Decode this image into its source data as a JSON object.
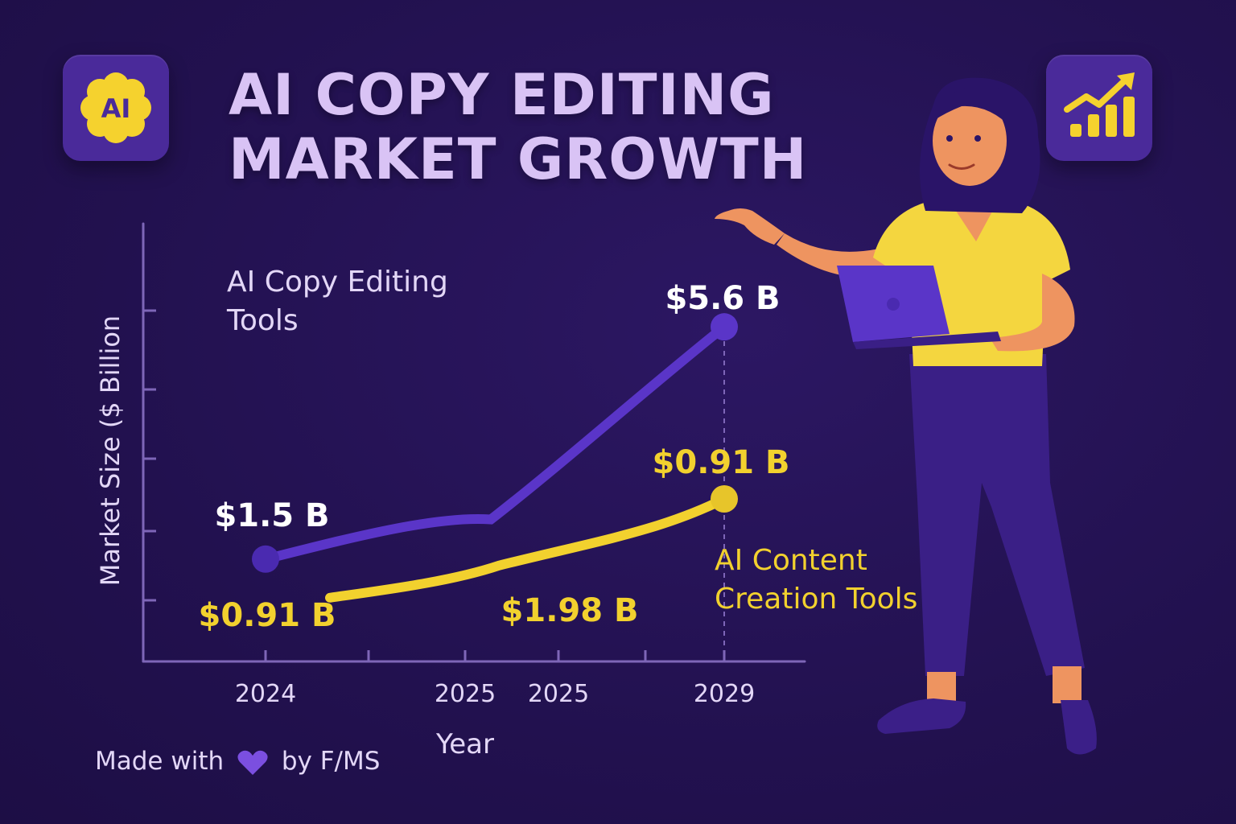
{
  "title": {
    "line1": "AI COPY EDITING",
    "line2": "MARKET GROWTH"
  },
  "badge_text": "AI",
  "footer": {
    "made_with": "Made with",
    "by": "by F/MS"
  },
  "icons": [
    "ai-brain-icon",
    "growth-chart-icon",
    "heart-icon",
    "laptop-icon"
  ],
  "colors": {
    "background": "#22114f",
    "purple_series": "#5a35c8",
    "yellow_series": "#f2d12e",
    "title": "#d9c3f5",
    "axis": "#7e66b8"
  },
  "chart_data": {
    "type": "line",
    "title": "AI COPY EDITING MARKET GROWTH",
    "xlabel": "Year",
    "ylabel": "Market Size ($ Billion",
    "x_tick_labels": [
      "2024",
      "2025",
      "2025",
      "2029"
    ],
    "grid": false,
    "series": [
      {
        "name": "AI Copy Editing Tools",
        "color": "#5a35c8",
        "points": [
          {
            "x": "2024",
            "y": 1.5,
            "label": "$1.5 B"
          },
          {
            "x": "2025",
            "y": 2.2
          },
          {
            "x": "2029",
            "y": 5.6,
            "label": "$5.6 B"
          }
        ]
      },
      {
        "name": "AI Content Creation Tools",
        "color": "#f2d12e",
        "points": [
          {
            "x": "2024",
            "y": 0.91,
            "label": "$0.91 B"
          },
          {
            "x": "2025",
            "y": 1.98,
            "label": "$1.98 B"
          },
          {
            "x": "2029",
            "y": 0.91,
            "label": "$0.91 B"
          }
        ]
      }
    ]
  }
}
